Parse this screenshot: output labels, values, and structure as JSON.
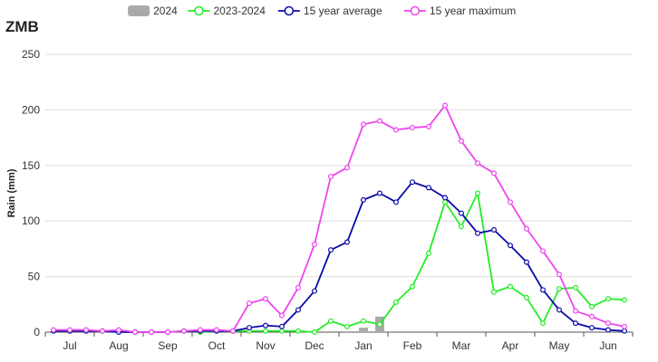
{
  "title": "ZMB",
  "chart_data": {
    "type": "line",
    "ylabel": "Rain (mm)",
    "xlabel": "",
    "ylim": [
      0,
      250
    ],
    "yticks": [
      0,
      50,
      100,
      150,
      200,
      250
    ],
    "grid": true,
    "legend_position": "top",
    "month_labels": [
      "Jul",
      "Aug",
      "Sep",
      "Oct",
      "Nov",
      "Dec",
      "Jan",
      "Feb",
      "Mar",
      "Apr",
      "May",
      "Jun"
    ],
    "series": [
      {
        "name": "2024",
        "kind": "bar",
        "color": "#aaaaaa",
        "x": [
          19,
          20
        ],
        "values": [
          4,
          14
        ]
      },
      {
        "name": "2023-2024",
        "kind": "line",
        "color": "#22ee22",
        "x": [
          9,
          10,
          11,
          12,
          13,
          14,
          15,
          16,
          17,
          18,
          19,
          20,
          21,
          22,
          23,
          24,
          25,
          26,
          27,
          28,
          29,
          30,
          31,
          32,
          33,
          34,
          35
        ],
        "values": [
          0,
          1,
          1,
          1,
          1,
          1,
          1,
          0,
          10,
          5,
          10,
          7,
          27,
          41,
          71,
          117,
          95,
          125,
          36,
          41,
          31,
          8,
          39,
          40,
          23,
          30,
          29
        ]
      },
      {
        "name": "15 year average",
        "kind": "line",
        "color": "#0a0aa8",
        "x": [
          0,
          1,
          2,
          3,
          4,
          5,
          6,
          7,
          8,
          9,
          10,
          11,
          12,
          13,
          14,
          15,
          16,
          17,
          18,
          19,
          20,
          21,
          22,
          23,
          24,
          25,
          26,
          27,
          28,
          29,
          30,
          31,
          32,
          33,
          34,
          35
        ],
        "values": [
          1,
          1,
          1,
          1,
          0,
          0,
          0,
          0,
          1,
          1,
          1,
          1,
          4,
          6,
          5,
          20,
          37,
          74,
          81,
          119,
          125,
          117,
          135,
          130,
          121,
          107,
          89,
          92,
          78,
          63,
          38,
          20,
          8,
          4,
          2,
          1
        ]
      },
      {
        "name": "15 year maximum",
        "kind": "line",
        "color": "#ee44ee",
        "x": [
          0,
          1,
          2,
          3,
          4,
          5,
          6,
          7,
          8,
          9,
          10,
          11,
          12,
          13,
          14,
          15,
          16,
          17,
          18,
          19,
          20,
          21,
          22,
          23,
          24,
          25,
          26,
          27,
          28,
          29,
          30,
          31,
          32,
          33,
          34,
          35
        ],
        "values": [
          2,
          2,
          2,
          1,
          2,
          0,
          0,
          0,
          1,
          2,
          2,
          1,
          26,
          30,
          15,
          40,
          79,
          140,
          148,
          187,
          190,
          182,
          184,
          185,
          204,
          172,
          152,
          143,
          117,
          93,
          73,
          52,
          19,
          14,
          8,
          5
        ]
      }
    ]
  }
}
